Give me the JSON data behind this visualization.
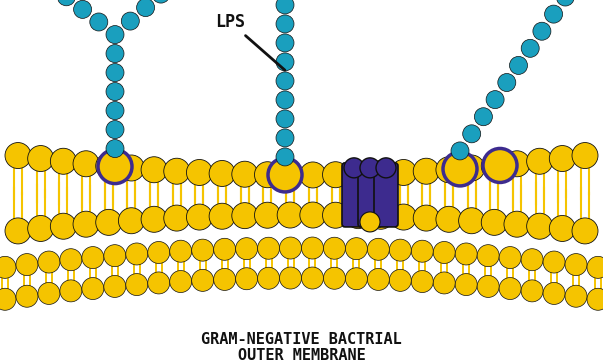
{
  "bg_color": "#ffffff",
  "cyan_color": "#1a9fbe",
  "yellow_color": "#f5c400",
  "purple_color": "#3d2b8e",
  "black_color": "#111111",
  "title_line1": "GRAM-NEGATIVE BACTRIAL",
  "title_line2": "OUTER MEMBRANE",
  "lps_label": "LPS",
  "figw": 6.03,
  "figh": 3.6,
  "dpi": 100
}
